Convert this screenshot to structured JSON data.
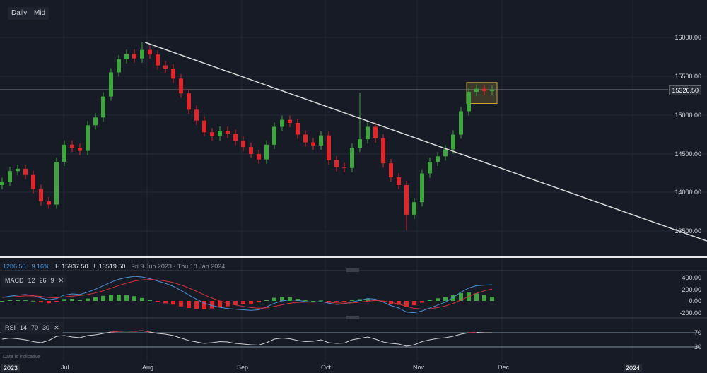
{
  "toolbar": {
    "interval": "Daily",
    "price_type": "Mid"
  },
  "price_axis": [
    "16000.00",
    "15500.00",
    "15000.00",
    "14500.00",
    "14000.00",
    "13500.00"
  ],
  "current_price": "15326.50",
  "info": {
    "change": "1286.50",
    "change_pct": "9.16%",
    "high": "H 15937.50",
    "low": "L 13519.50",
    "range": "Fri 9 Jun 2023 - Thu 18 Jan 2024"
  },
  "macd": {
    "name": "MACD",
    "p1": "12",
    "p2": "26",
    "p3": "9",
    "close": "✕",
    "axis": [
      "400.00",
      "200.00",
      "0.00",
      "-200.00"
    ]
  },
  "rsi": {
    "name": "RSI",
    "p1": "14",
    "p2": "70",
    "p3": "30",
    "close": "✕",
    "axis": [
      "70",
      "30"
    ]
  },
  "disclaimer": "Data is indicative",
  "x_axis": [
    "2023",
    "Jul",
    "Aug",
    "Sep",
    "Oct",
    "Nov",
    "Dec",
    "2024"
  ],
  "colors": {
    "up": "#3fa63f",
    "down": "#e0262b",
    "macd": "#4d8fd6",
    "signal": "#d0323a",
    "trend": "#d8d8d8",
    "zone": "#c8a43a"
  },
  "chart_data": {
    "type": "candlestick",
    "price_range": [
      13350,
      16100
    ],
    "closes": [
      14140,
      14280,
      14310,
      14230,
      14050,
      13890,
      13850,
      14400,
      14620,
      14580,
      14540,
      14870,
      14970,
      15240,
      15550,
      15720,
      15790,
      15730,
      15840,
      15780,
      15640,
      15600,
      15470,
      15280,
      15070,
      14930,
      14780,
      14730,
      14800,
      14760,
      14670,
      14590,
      14500,
      14430,
      14620,
      14850,
      14940,
      14900,
      14750,
      14650,
      14610,
      14740,
      14420,
      14330,
      14320,
      14580,
      14690,
      14850,
      14700,
      14380,
      14200,
      14100,
      13720,
      13880,
      14250,
      14400,
      14470,
      14560,
      14750,
      15050,
      15300,
      15340,
      15310,
      15326.5
    ],
    "extremes": {
      "18": {
        "h": 15937.5
      },
      "52": {
        "l": 13519.5
      },
      "46": {
        "h": 15290
      }
    },
    "trendline": {
      "start": 15937.5,
      "end": 13380
    },
    "zone": [
      15150,
      15420
    ],
    "macd": [
      60,
      80,
      100,
      110,
      90,
      50,
      20,
      40,
      100,
      120,
      110,
      150,
      200,
      260,
      320,
      370,
      400,
      420,
      410,
      380,
      340,
      300,
      250,
      180,
      100,
      30,
      -40,
      -80,
      -110,
      -130,
      -140,
      -150,
      -160,
      -150,
      -100,
      -40,
      0,
      20,
      10,
      -10,
      -20,
      -10,
      -40,
      -60,
      -50,
      -20,
      10,
      40,
      30,
      -20,
      -80,
      -120,
      -190,
      -200,
      -170,
      -120,
      -70,
      -20,
      60,
      150,
      220,
      260,
      270,
      275
    ],
    "rsi": [
      52,
      55,
      53,
      50,
      45,
      42,
      48,
      60,
      62,
      58,
      56,
      62,
      64,
      68,
      72,
      74,
      75,
      74,
      76,
      72,
      68,
      66,
      62,
      55,
      48,
      44,
      40,
      42,
      45,
      44,
      40,
      38,
      36,
      35,
      42,
      52,
      55,
      53,
      48,
      45,
      46,
      50,
      42,
      40,
      41,
      50,
      54,
      58,
      52,
      44,
      40,
      38,
      32,
      36,
      45,
      50,
      54,
      56,
      60,
      66,
      70,
      71,
      70,
      70
    ]
  }
}
